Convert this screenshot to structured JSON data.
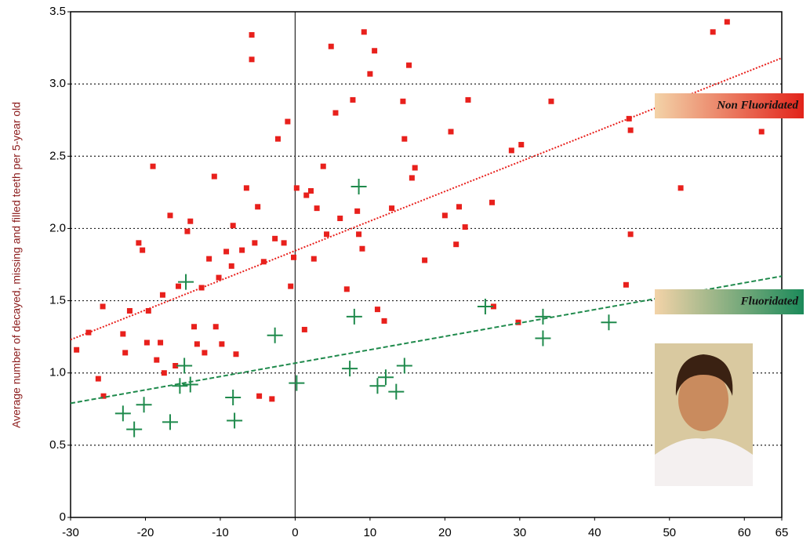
{
  "chart_data": {
    "type": "scatter",
    "y_label": "Average number of decayed, missing and filled teeth per 5-year old",
    "xlim": [
      -30,
      65
    ],
    "ylim": [
      0,
      3.5
    ],
    "xticks": [
      -30,
      -20,
      -10,
      0,
      10,
      20,
      30,
      40,
      50,
      60,
      65
    ],
    "yticks": [
      0,
      0.5,
      {
        "value": 1,
        "label": "1.0"
      },
      1.5,
      {
        "value": 2,
        "label": "2.0"
      },
      2.5,
      {
        "value": 3,
        "label": "3.0"
      },
      3.5
    ],
    "grid": true,
    "series": [
      {
        "name": "Non Fluoridated",
        "color": "#e8201c",
        "marker": "square",
        "x": [
          -29.2,
          -27.6,
          -26.3,
          -25.7,
          -25.6,
          -23,
          -22.7,
          -22.1,
          -20.9,
          -20.4,
          -19.8,
          -19.6,
          -19,
          -18.5,
          -18,
          -17.7,
          -17.5,
          -16.7,
          -16,
          -15.6,
          -14.4,
          -14,
          -13.5,
          -13.1,
          -12.5,
          -12.1,
          -11.5,
          -10.8,
          -10.6,
          -10.2,
          -9.8,
          -9.2,
          -8.5,
          -8.3,
          -7.9,
          -7.1,
          -6.5,
          -5.8,
          -5.8,
          -5.4,
          -5,
          -4.8,
          -4.2,
          -3.1,
          -2.7,
          -2.3,
          -1.5,
          -1,
          -0.6,
          -0.2,
          0.2,
          1.25,
          1.5,
          2.1,
          2.5,
          2.9,
          3.75,
          4.2,
          4.8,
          5.4,
          6,
          6.9,
          7.7,
          8.3,
          8.5,
          8.96,
          9.2,
          10,
          10.6,
          11,
          11.9,
          12.9,
          14.4,
          14.6,
          15.2,
          15.6,
          16,
          17.3,
          20,
          20.8,
          21.5,
          21.9,
          22.7,
          23.1,
          26.3,
          26.5,
          28.9,
          29.8,
          30.2,
          34.2,
          44.6,
          44.8,
          44.8,
          44.2,
          51.5,
          55.8,
          57.7,
          62.3
        ],
        "values": [
          1.16,
          1.28,
          0.96,
          1.46,
          0.84,
          1.27,
          1.14,
          1.43,
          1.9,
          1.85,
          1.21,
          1.43,
          2.43,
          1.09,
          1.21,
          1.54,
          1.0,
          2.09,
          1.05,
          1.6,
          1.98,
          2.05,
          1.32,
          1.2,
          1.59,
          1.14,
          1.79,
          2.36,
          1.32,
          1.66,
          1.2,
          1.84,
          1.74,
          2.02,
          1.13,
          1.85,
          2.28,
          3.34,
          3.17,
          1.9,
          2.15,
          0.84,
          1.77,
          0.82,
          1.93,
          2.62,
          1.9,
          2.74,
          1.6,
          1.8,
          2.28,
          1.3,
          2.23,
          2.26,
          1.79,
          2.14,
          2.43,
          1.96,
          3.26,
          2.8,
          2.07,
          1.58,
          2.89,
          2.12,
          1.96,
          1.86,
          3.36,
          3.07,
          3.23,
          1.44,
          1.36,
          2.14,
          2.88,
          2.62,
          3.13,
          2.35,
          2.42,
          1.78,
          2.09,
          2.67,
          1.89,
          2.15,
          2.01,
          2.89,
          2.18,
          1.46,
          2.54,
          1.35,
          2.58,
          2.88,
          2.76,
          2.68,
          1.96,
          1.61,
          2.28,
          3.36,
          3.43,
          2.67
        ],
        "trend": {
          "x": [
            -30,
            65
          ],
          "y": [
            1.23,
            3.18
          ]
        }
      },
      {
        "name": "Fluoridated",
        "color": "#1f8a4c",
        "marker": "cross",
        "x": [
          -23,
          -21.5,
          -20.2,
          -16.7,
          -15.4,
          -14.8,
          -14.6,
          -14,
          -8.3,
          -8.1,
          -2.7,
          0.2,
          7.3,
          7.9,
          8.5,
          11,
          12.1,
          13.5,
          14.6,
          25.4,
          33.1,
          33.1,
          41.9
        ],
        "values": [
          0.72,
          0.61,
          0.78,
          0.66,
          0.91,
          1.05,
          1.63,
          0.92,
          0.83,
          0.67,
          1.26,
          0.93,
          1.03,
          1.39,
          2.29,
          0.91,
          0.97,
          0.87,
          1.05,
          1.46,
          1.39,
          1.24,
          1.35
        ],
        "trend": {
          "x": [
            -30,
            65
          ],
          "y": [
            0.79,
            1.67
          ]
        }
      }
    ]
  }
}
